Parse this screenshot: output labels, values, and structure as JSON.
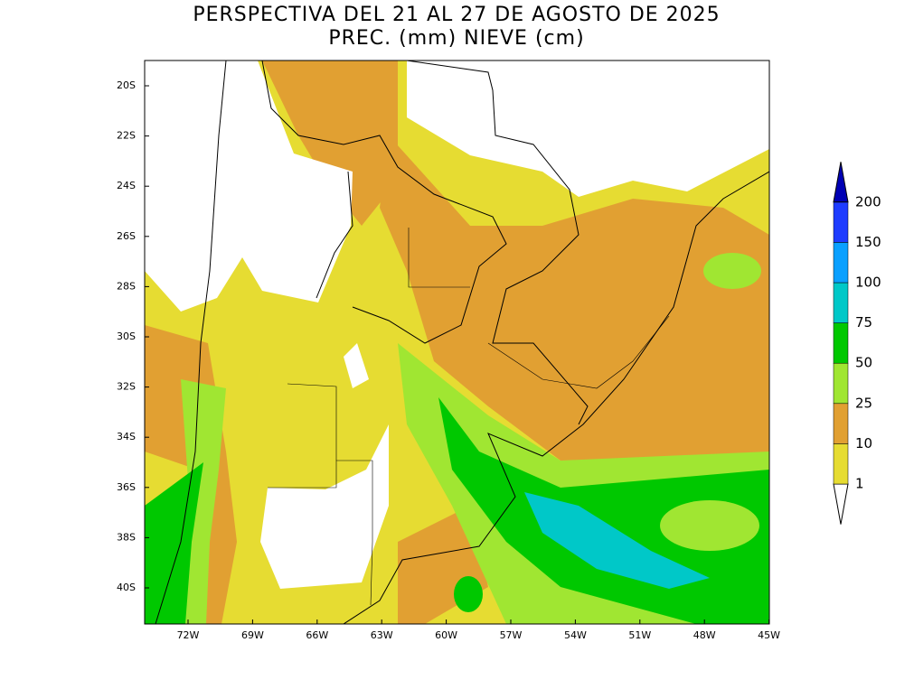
{
  "title": [
    "PERSPECTIVA DEL 21 AL 27 DE AGOSTO DE 2025",
    "PREC. (mm) NIEVE (cm)"
  ],
  "lat_labels": [
    "20S",
    "22S",
    "24S",
    "26S",
    "28S",
    "30S",
    "32S",
    "34S",
    "36S",
    "38S",
    "40S"
  ],
  "lon_labels": [
    "72W",
    "69W",
    "66W",
    "63W",
    "60W",
    "57W",
    "54W",
    "51W",
    "48W",
    "45W"
  ],
  "legend": {
    "levels": [
      1,
      10,
      25,
      50,
      75,
      100,
      150,
      200
    ],
    "colors": [
      "#ffffff",
      "#e6dc32",
      "#e1a032",
      "#a0e632",
      "#00c800",
      "#00c8c8",
      "#0aa0ff",
      "#1e3cff",
      "#0000b4"
    ]
  }
}
